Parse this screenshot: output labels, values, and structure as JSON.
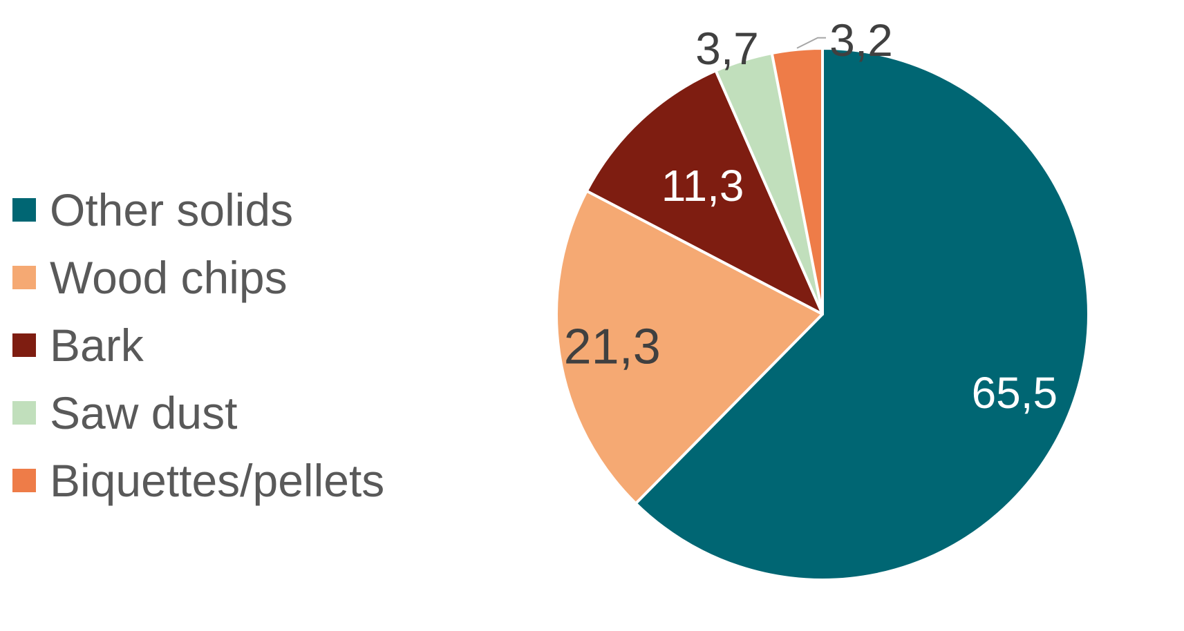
{
  "chart_data": {
    "type": "pie",
    "start_angle_deg": 0,
    "direction": "clockwise",
    "legend_position": "left",
    "slices": [
      {
        "name": "Other solids",
        "value": 65.5,
        "label": "65,5",
        "color": "#006673",
        "label_color": "#ffffff"
      },
      {
        "name": "Wood chips",
        "value": 21.3,
        "label": "21,3",
        "color": "#F5A973",
        "label_color": "#404040"
      },
      {
        "name": "Bark",
        "value": 11.3,
        "label": "11,3",
        "color": "#7E1D11",
        "label_color": "#ffffff"
      },
      {
        "name": "Saw dust",
        "value": 3.7,
        "label": "3,7",
        "color": "#C1DFBC",
        "label_color": "#404040"
      },
      {
        "name": "Biquettes/pellets",
        "value": 3.2,
        "label": "3,2",
        "color": "#EE7C48",
        "label_color": "#404040"
      }
    ]
  }
}
